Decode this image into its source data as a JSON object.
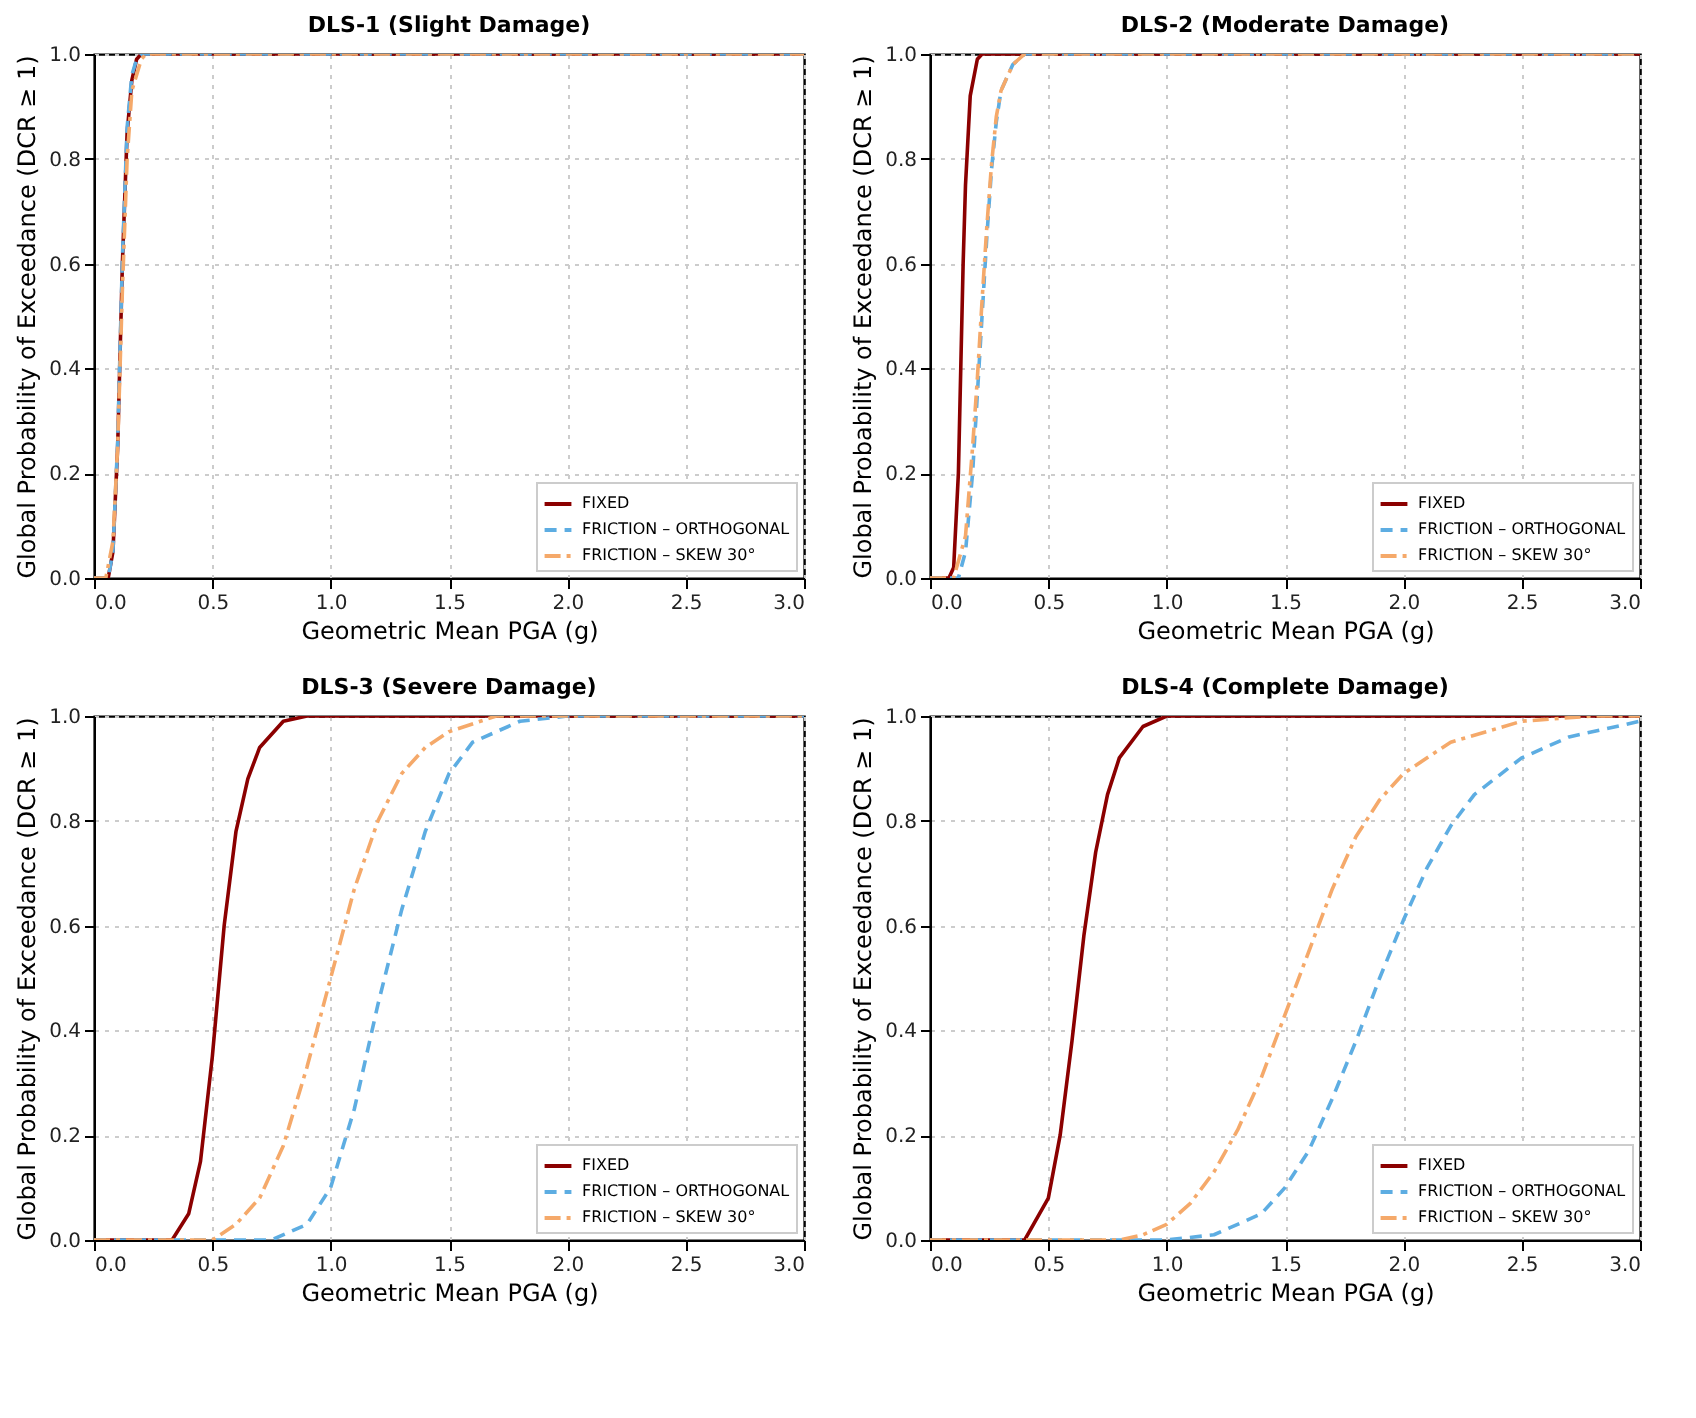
{
  "chart_data": [
    {
      "type": "line",
      "title": "DLS-1 (Slight Damage)",
      "xlabel": "Geometric Mean PGA (g)",
      "ylabel": "Global Probability of Exceedance (DCR ≥ 1)",
      "xlim": [
        0,
        3
      ],
      "ylim": [
        0,
        1
      ],
      "xticks": [
        {
          "value": 0,
          "label": "0.0"
        },
        {
          "value": 0.5,
          "label": "0.5"
        },
        {
          "value": 1,
          "label": "1.0"
        },
        {
          "value": 1.5,
          "label": "1.5"
        },
        {
          "value": 2,
          "label": "2.0"
        },
        {
          "value": 2.5,
          "label": "2.5"
        },
        {
          "value": 3,
          "label": "3.0"
        }
      ],
      "yticks": [
        {
          "value": 0,
          "label": "0.0"
        },
        {
          "value": 0.2,
          "label": "0.2"
        },
        {
          "value": 0.4,
          "label": "0.4"
        },
        {
          "value": 0.6,
          "label": "0.6"
        },
        {
          "value": 0.8,
          "label": "0.8"
        },
        {
          "value": 1,
          "label": "1.0"
        }
      ],
      "grid": true,
      "legend": "bottom right",
      "series": [
        {
          "name": "FIXED",
          "color": "#8b0000",
          "line_style": "solid",
          "x": [
            0,
            0.06,
            0.08,
            0.1,
            0.12,
            0.14,
            0.16,
            0.18,
            0.2,
            3
          ],
          "values": [
            0,
            0,
            0.05,
            0.25,
            0.6,
            0.85,
            0.95,
            0.99,
            1,
            1
          ]
        },
        {
          "name": "FRICTION – ORTHOGONAL",
          "color": "#5dade2",
          "line_style": "dashed",
          "x": [
            0,
            0.06,
            0.08,
            0.1,
            0.12,
            0.14,
            0.16,
            0.18,
            0.2,
            3
          ],
          "values": [
            0,
            0,
            0.05,
            0.26,
            0.61,
            0.86,
            0.96,
            0.99,
            1,
            1
          ]
        },
        {
          "name": "FRICTION – SKEW 30°",
          "color": "#f5a96a",
          "line_style": "dashdot",
          "x": [
            0,
            0.05,
            0.08,
            0.1,
            0.12,
            0.14,
            0.16,
            0.2,
            0.22,
            3
          ],
          "values": [
            0,
            0,
            0.07,
            0.25,
            0.55,
            0.8,
            0.93,
            0.99,
            1,
            1
          ]
        }
      ]
    },
    {
      "type": "line",
      "title": "DLS-2 (Moderate Damage)",
      "xlabel": "Geometric Mean PGA (g)",
      "ylabel": "Global Probability of Exceedance (DCR ≥ 1)",
      "xlim": [
        0,
        3
      ],
      "ylim": [
        0,
        1
      ],
      "xticks": [
        {
          "value": 0,
          "label": "0.0"
        },
        {
          "value": 0.5,
          "label": "0.5"
        },
        {
          "value": 1,
          "label": "1.0"
        },
        {
          "value": 1.5,
          "label": "1.5"
        },
        {
          "value": 2,
          "label": "2.0"
        },
        {
          "value": 2.5,
          "label": "2.5"
        },
        {
          "value": 3,
          "label": "3.0"
        }
      ],
      "yticks": [
        {
          "value": 0,
          "label": "0.0"
        },
        {
          "value": 0.2,
          "label": "0.2"
        },
        {
          "value": 0.4,
          "label": "0.4"
        },
        {
          "value": 0.6,
          "label": "0.6"
        },
        {
          "value": 0.8,
          "label": "0.8"
        },
        {
          "value": 1,
          "label": "1.0"
        }
      ],
      "grid": true,
      "legend": "bottom right",
      "series": [
        {
          "name": "FIXED",
          "color": "#8b0000",
          "line_style": "solid",
          "x": [
            0,
            0.08,
            0.1,
            0.12,
            0.13,
            0.14,
            0.15,
            0.17,
            0.2,
            0.22,
            3
          ],
          "values": [
            0,
            0,
            0.02,
            0.2,
            0.4,
            0.6,
            0.75,
            0.92,
            0.99,
            1,
            1
          ]
        },
        {
          "name": "FRICTION – ORTHOGONAL",
          "color": "#5dade2",
          "line_style": "dashed",
          "x": [
            0,
            0.12,
            0.15,
            0.18,
            0.2,
            0.22,
            0.24,
            0.26,
            0.28,
            0.3,
            0.35,
            0.4,
            3
          ],
          "values": [
            0,
            0,
            0.05,
            0.2,
            0.35,
            0.5,
            0.65,
            0.78,
            0.87,
            0.93,
            0.98,
            1,
            1
          ]
        },
        {
          "name": "FRICTION – SKEW 30°",
          "color": "#f5a96a",
          "line_style": "dashdot",
          "x": [
            0,
            0.1,
            0.15,
            0.18,
            0.2,
            0.22,
            0.24,
            0.26,
            0.28,
            0.3,
            0.35,
            0.4,
            3
          ],
          "values": [
            0,
            0,
            0.08,
            0.25,
            0.38,
            0.53,
            0.67,
            0.79,
            0.88,
            0.93,
            0.98,
            1,
            1
          ]
        }
      ]
    },
    {
      "type": "line",
      "title": "DLS-3 (Severe Damage)",
      "xlabel": "Geometric Mean PGA (g)",
      "ylabel": "Global Probability of Exceedance (DCR ≥ 1)",
      "xlim": [
        0,
        3
      ],
      "ylim": [
        0,
        1
      ],
      "xticks": [
        {
          "value": 0,
          "label": "0.0"
        },
        {
          "value": 0.5,
          "label": "0.5"
        },
        {
          "value": 1,
          "label": "1.0"
        },
        {
          "value": 1.5,
          "label": "1.5"
        },
        {
          "value": 2,
          "label": "2.0"
        },
        {
          "value": 2.5,
          "label": "2.5"
        },
        {
          "value": 3,
          "label": "3.0"
        }
      ],
      "yticks": [
        {
          "value": 0,
          "label": "0.0"
        },
        {
          "value": 0.2,
          "label": "0.2"
        },
        {
          "value": 0.4,
          "label": "0.4"
        },
        {
          "value": 0.6,
          "label": "0.6"
        },
        {
          "value": 0.8,
          "label": "0.8"
        },
        {
          "value": 1,
          "label": "1.0"
        }
      ],
      "grid": true,
      "legend": "bottom right",
      "series": [
        {
          "name": "FIXED",
          "color": "#8b0000",
          "line_style": "solid",
          "x": [
            0,
            0.33,
            0.4,
            0.45,
            0.5,
            0.55,
            0.6,
            0.65,
            0.7,
            0.8,
            0.9,
            3
          ],
          "values": [
            0,
            0,
            0.05,
            0.15,
            0.35,
            0.6,
            0.78,
            0.88,
            0.94,
            0.99,
            1,
            1
          ]
        },
        {
          "name": "FRICTION – ORTHOGONAL",
          "color": "#5dade2",
          "line_style": "dashed",
          "x": [
            0,
            0.75,
            0.9,
            1.0,
            1.1,
            1.2,
            1.3,
            1.4,
            1.5,
            1.6,
            1.8,
            2.0,
            3
          ],
          "values": [
            0,
            0,
            0.03,
            0.1,
            0.25,
            0.45,
            0.63,
            0.78,
            0.89,
            0.95,
            0.99,
            1,
            1
          ]
        },
        {
          "name": "FRICTION – SKEW 30°",
          "color": "#f5a96a",
          "line_style": "dashdot",
          "x": [
            0,
            0.5,
            0.6,
            0.7,
            0.8,
            0.9,
            1.0,
            1.1,
            1.2,
            1.3,
            1.4,
            1.5,
            1.7,
            3
          ],
          "values": [
            0,
            0,
            0.03,
            0.08,
            0.18,
            0.33,
            0.5,
            0.67,
            0.8,
            0.89,
            0.94,
            0.97,
            1,
            1
          ]
        }
      ]
    },
    {
      "type": "line",
      "title": "DLS-4 (Complete Damage)",
      "xlabel": "Geometric Mean PGA (g)",
      "ylabel": "Global Probability of Exceedance (DCR ≥ 1)",
      "xlim": [
        0,
        3
      ],
      "ylim": [
        0,
        1
      ],
      "xticks": [
        {
          "value": 0,
          "label": "0.0"
        },
        {
          "value": 0.5,
          "label": "0.5"
        },
        {
          "value": 1,
          "label": "1.0"
        },
        {
          "value": 1.5,
          "label": "1.5"
        },
        {
          "value": 2,
          "label": "2.0"
        },
        {
          "value": 2.5,
          "label": "2.5"
        },
        {
          "value": 3,
          "label": "3.0"
        }
      ],
      "yticks": [
        {
          "value": 0,
          "label": "0.0"
        },
        {
          "value": 0.2,
          "label": "0.2"
        },
        {
          "value": 0.4,
          "label": "0.4"
        },
        {
          "value": 0.6,
          "label": "0.6"
        },
        {
          "value": 0.8,
          "label": "0.8"
        },
        {
          "value": 1,
          "label": "1.0"
        }
      ],
      "grid": true,
      "legend": "bottom right",
      "series": [
        {
          "name": "FIXED",
          "color": "#8b0000",
          "line_style": "solid",
          "x": [
            0,
            0.4,
            0.5,
            0.55,
            0.6,
            0.65,
            0.7,
            0.75,
            0.8,
            0.9,
            1.0,
            3
          ],
          "values": [
            0,
            0,
            0.08,
            0.2,
            0.38,
            0.58,
            0.74,
            0.85,
            0.92,
            0.98,
            1,
            1
          ]
        },
        {
          "name": "FRICTION – ORTHOGONAL",
          "color": "#5dade2",
          "line_style": "dashed",
          "x": [
            0,
            1.0,
            1.2,
            1.4,
            1.5,
            1.6,
            1.7,
            1.8,
            1.9,
            2.0,
            2.1,
            2.2,
            2.3,
            2.5,
            2.7,
            3.0
          ],
          "values": [
            0,
            0,
            0.01,
            0.05,
            0.1,
            0.17,
            0.27,
            0.38,
            0.5,
            0.61,
            0.71,
            0.79,
            0.85,
            0.92,
            0.96,
            0.99
          ]
        },
        {
          "name": "FRICTION – SKEW 30°",
          "color": "#f5a96a",
          "line_style": "dashdot",
          "x": [
            0,
            0.8,
            0.9,
            1.0,
            1.1,
            1.2,
            1.3,
            1.4,
            1.5,
            1.6,
            1.7,
            1.8,
            1.9,
            2.0,
            2.2,
            2.5,
            2.8,
            3
          ],
          "values": [
            0,
            0,
            0.01,
            0.03,
            0.07,
            0.13,
            0.21,
            0.31,
            0.43,
            0.55,
            0.67,
            0.77,
            0.84,
            0.89,
            0.95,
            0.99,
            1,
            1
          ]
        }
      ]
    }
  ]
}
